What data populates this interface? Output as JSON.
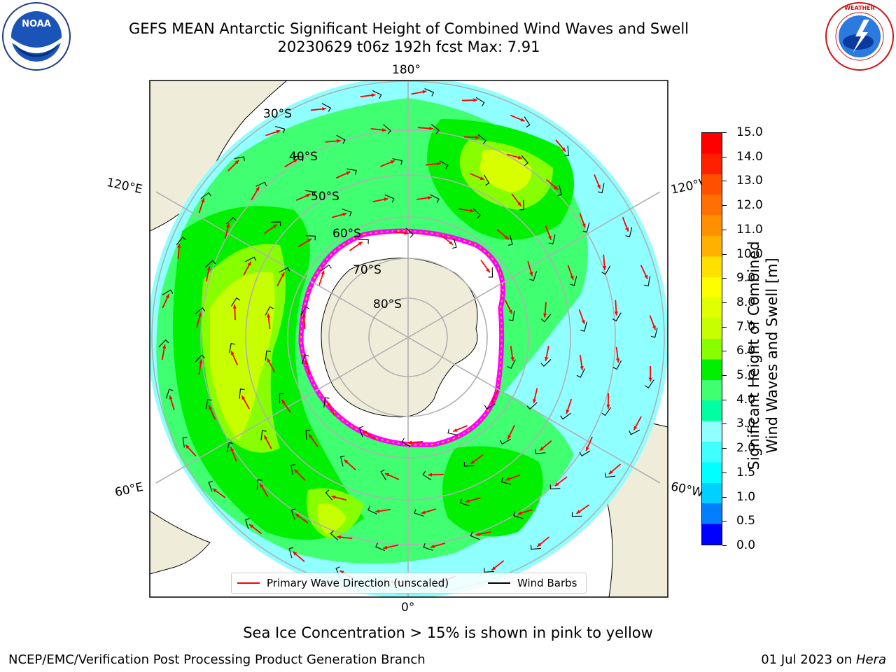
{
  "header": {
    "title_line1": "GEFS MEAN Antarctic Significant Height of Combined Wind Waves and Swell",
    "title_line2": "20230629 t06z 192h fcst   Max: 7.91"
  },
  "logos": {
    "left": {
      "icon": "noaa-logo-icon",
      "text": "NOAA",
      "ring_text": "NATIONAL OCEANIC AND ATMOSPHERIC ADMINISTRATION · U.S. DEPARTMENT OF COMMERCE"
    },
    "right": {
      "icon": "nws-logo-icon",
      "ring_text": "NATIONAL WEATHER SERVICE"
    }
  },
  "map": {
    "projection": "south-polar-stereographic",
    "longitude_labels": {
      "top": "180°",
      "bottom": "0°",
      "left_upper": "120°E",
      "left_lower": "60°E",
      "right_upper": "120°W",
      "right_lower": "60°W"
    },
    "latitude_labels": [
      "30°S",
      "40°S",
      "50°S",
      "60°S",
      "70°S",
      "80°S"
    ],
    "colors": {
      "land": "#efedda",
      "ice": "#ffffff",
      "ice_edge": "#ff00ff",
      "coast": "#000000",
      "grid": "#b0b0b0",
      "wave_arrow": "#ff0000",
      "wind_barb": "#000000"
    }
  },
  "colorbar": {
    "label_line1": "Significant Height of Combined",
    "label_line2": "Wind Waves and Swell [m]",
    "ticks": [
      "15.0",
      "14.0",
      "13.0",
      "12.0",
      "11.0",
      "10.0",
      "9.0",
      "8.0",
      "7.0",
      "6.0",
      "5.0",
      "4.0",
      "3.0",
      "2.0",
      "1.5",
      "1.0",
      "0.5",
      "0.0"
    ],
    "colors_top_to_bottom": [
      "#ff0000",
      "#ff2000",
      "#ff5000",
      "#ff7000",
      "#ff9000",
      "#ffb000",
      "#ffe000",
      "#ffff00",
      "#e0ff00",
      "#c8ff00",
      "#88ff00",
      "#00f000",
      "#40ff70",
      "#00ffa0",
      "#90ffff",
      "#40ffff",
      "#00ffff",
      "#00d0ff",
      "#0080ff",
      "#0000ff"
    ]
  },
  "legend": {
    "items": [
      {
        "label": "Primary Wave Direction (unscaled)",
        "color": "#ff0000"
      },
      {
        "label": "Wind Barbs",
        "color": "#000000"
      }
    ]
  },
  "notes": {
    "sea_ice": "Sea Ice Concentration > 15% is shown in pink to yellow"
  },
  "footer": {
    "left": "NCEP/EMC/Verification Post Processing Product Generation Branch",
    "right_date": "01 Jul 2023 on",
    "right_machine": "Hera"
  }
}
